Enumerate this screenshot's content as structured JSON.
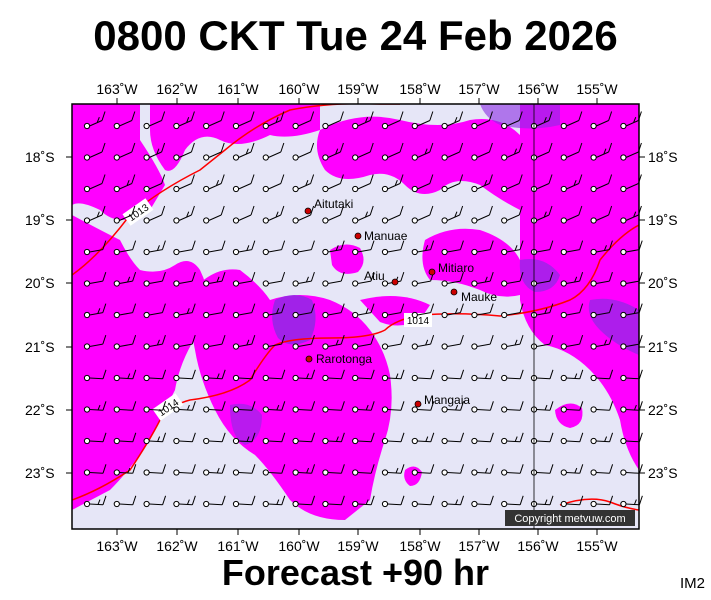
{
  "header": {
    "title": "0800 CKT Tue 24 Feb 2026"
  },
  "footer": {
    "forecast": "Forecast +90 hr",
    "code": "IM2"
  },
  "map": {
    "lon_labels": [
      "163˚W",
      "162˚W",
      "161˚W",
      "160˚W",
      "159˚W",
      "158˚W",
      "157˚W",
      "156˚W",
      "155˚W"
    ],
    "lat_labels": [
      "18˚S",
      "19˚S",
      "20˚S",
      "21˚S",
      "22˚S",
      "23˚S"
    ],
    "places": [
      {
        "name": "Aitutaki"
      },
      {
        "name": "Manuae"
      },
      {
        "name": "Mitiaro"
      },
      {
        "name": "Atiu"
      },
      {
        "name": "Mauke"
      },
      {
        "name": "Rarotonga"
      },
      {
        "name": "Mangaia"
      }
    ],
    "isobars": [
      "1013",
      "1014",
      "1014"
    ],
    "copyright": "Copyright metvuw.com",
    "colors": {
      "background": "#e6e6f7",
      "rain": "#ff00ff",
      "heavy": "#8a2be2",
      "isobar": "#ff0000"
    }
  }
}
